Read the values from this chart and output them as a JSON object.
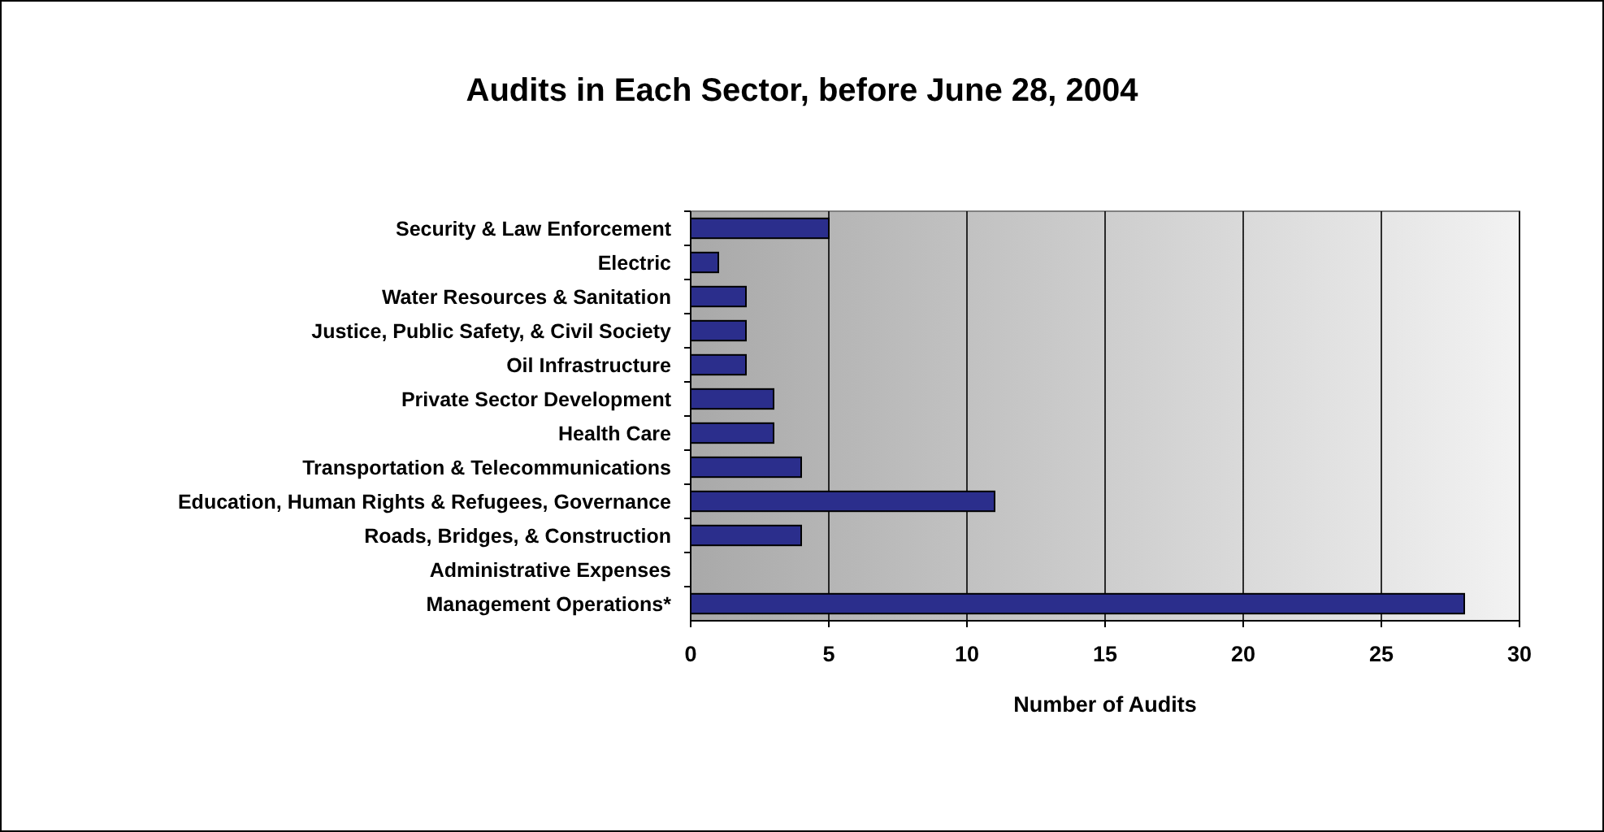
{
  "chart_data": {
    "type": "bar",
    "orientation": "horizontal",
    "title": "Audits in Each Sector, before June 28, 2004",
    "xlabel": "Number of Audits",
    "categories": [
      "Security & Law Enforcement",
      "Electric",
      "Water Resources & Sanitation",
      "Justice, Public Safety, & Civil Society",
      "Oil Infrastructure",
      "Private Sector Development",
      "Health Care",
      "Transportation & Telecommunications",
      "Education, Human Rights & Refugees, Governance",
      "Roads, Bridges, & Construction",
      "Administrative Expenses",
      "Management Operations*"
    ],
    "values": [
      5,
      1,
      2,
      2,
      2,
      3,
      3,
      4,
      11,
      4,
      0,
      28
    ],
    "color": "#2b2e8c",
    "xlim": [
      0,
      30
    ],
    "xticks": [
      0,
      5,
      10,
      15,
      20,
      25,
      30
    ],
    "grid": "x"
  }
}
